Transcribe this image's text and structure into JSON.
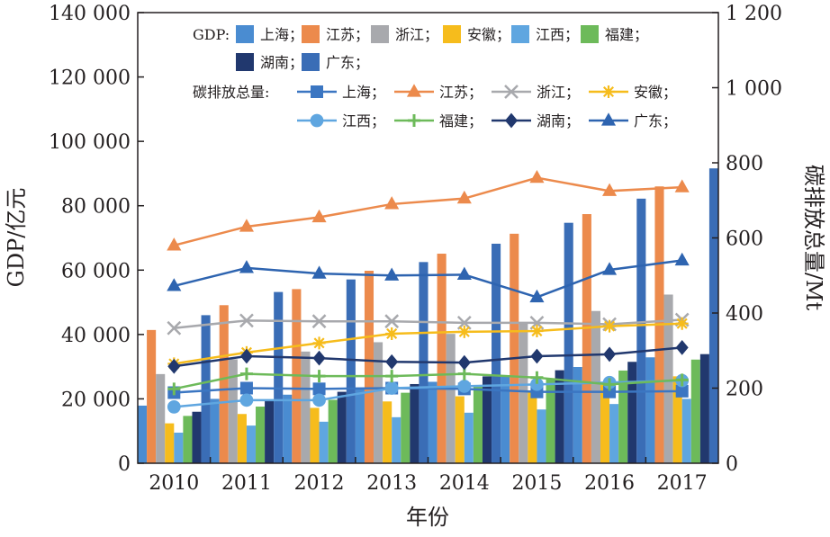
{
  "chart_data": {
    "type": "bar",
    "categories": [
      "2010",
      "2011",
      "2012",
      "2013",
      "2014",
      "2015",
      "2016",
      "2017"
    ],
    "xlabel": "年份",
    "ylabel": "GDP/亿元",
    "y2label": "碳排放总量/Mt",
    "ylim": [
      0,
      140000
    ],
    "y2lim": [
      0,
      1200
    ],
    "yticks": [
      "0",
      "20 000",
      "40 000",
      "60 000",
      "80 000",
      "100 000",
      "120 000",
      "140 000"
    ],
    "y2ticks": [
      "0",
      "200",
      "400",
      "600",
      "800",
      "1 000",
      "1 200"
    ],
    "legend_gdp_title": "GDP:",
    "legend_co2_title": "碳排放总量:",
    "gdp_series": [
      {
        "name": "上海",
        "color": "#4a8cd1",
        "values": [
          17900,
          20000,
          21300,
          23200,
          25300,
          26900,
          29900,
          32900
        ]
      },
      {
        "name": "江苏",
        "color": "#ec8a4c",
        "values": [
          41400,
          49100,
          54100,
          59800,
          65100,
          71300,
          77400,
          86000
        ]
      },
      {
        "name": "浙江",
        "color": "#a8a9ad",
        "values": [
          27700,
          32300,
          34700,
          37600,
          40200,
          43500,
          47300,
          52400
        ]
      },
      {
        "name": "安徽",
        "color": "#f6bc1c",
        "values": [
          12400,
          15300,
          17200,
          19200,
          20800,
          22000,
          24400,
          27000
        ]
      },
      {
        "name": "江西",
        "color": "#5fa6e0",
        "values": [
          9500,
          11700,
          12900,
          14300,
          15700,
          16700,
          18400,
          20000
        ]
      },
      {
        "name": "福建",
        "color": "#6dba5a",
        "values": [
          14700,
          17600,
          19700,
          21900,
          24100,
          26000,
          28800,
          32200
        ]
      },
      {
        "name": "湖南",
        "color": "#21386e",
        "values": [
          16000,
          19700,
          22200,
          24600,
          27000,
          28900,
          31500,
          33900
        ]
      },
      {
        "name": "广东",
        "color": "#3a6db6",
        "values": [
          46000,
          53200,
          57100,
          62500,
          68200,
          74700,
          82200,
          91600
        ]
      }
    ],
    "co2_series": [
      {
        "name": "上海",
        "color": "#3b76c2",
        "marker": "square",
        "values": [
          188,
          200,
          198,
          200,
          198,
          190,
          190,
          192
        ]
      },
      {
        "name": "江苏",
        "color": "#ec8a4c",
        "marker": "triangle-up",
        "values": [
          580,
          630,
          655,
          690,
          705,
          760,
          725,
          735
        ]
      },
      {
        "name": "浙江",
        "color": "#a8a9ad",
        "marker": "x",
        "values": [
          360,
          380,
          378,
          378,
          374,
          374,
          370,
          382
        ]
      },
      {
        "name": "安徽",
        "color": "#f6bc1c",
        "marker": "asterisk",
        "values": [
          265,
          295,
          320,
          345,
          350,
          352,
          365,
          372
        ]
      },
      {
        "name": "江西",
        "color": "#5fa6e0",
        "marker": "circle",
        "values": [
          150,
          168,
          168,
          200,
          205,
          210,
          215,
          220
        ]
      },
      {
        "name": "福建",
        "color": "#6dba5a",
        "marker": "plus",
        "values": [
          198,
          238,
          232,
          232,
          238,
          228,
          210,
          222
        ]
      },
      {
        "name": "湖南",
        "color": "#21386e",
        "marker": "diamond",
        "values": [
          258,
          285,
          280,
          270,
          268,
          285,
          290,
          308
        ]
      },
      {
        "name": "广东",
        "color": "#2e64b0",
        "marker": "triangle-up",
        "values": [
          472,
          520,
          505,
          500,
          502,
          442,
          515,
          540
        ]
      }
    ],
    "grid": false,
    "legend_position": "top-inside"
  }
}
